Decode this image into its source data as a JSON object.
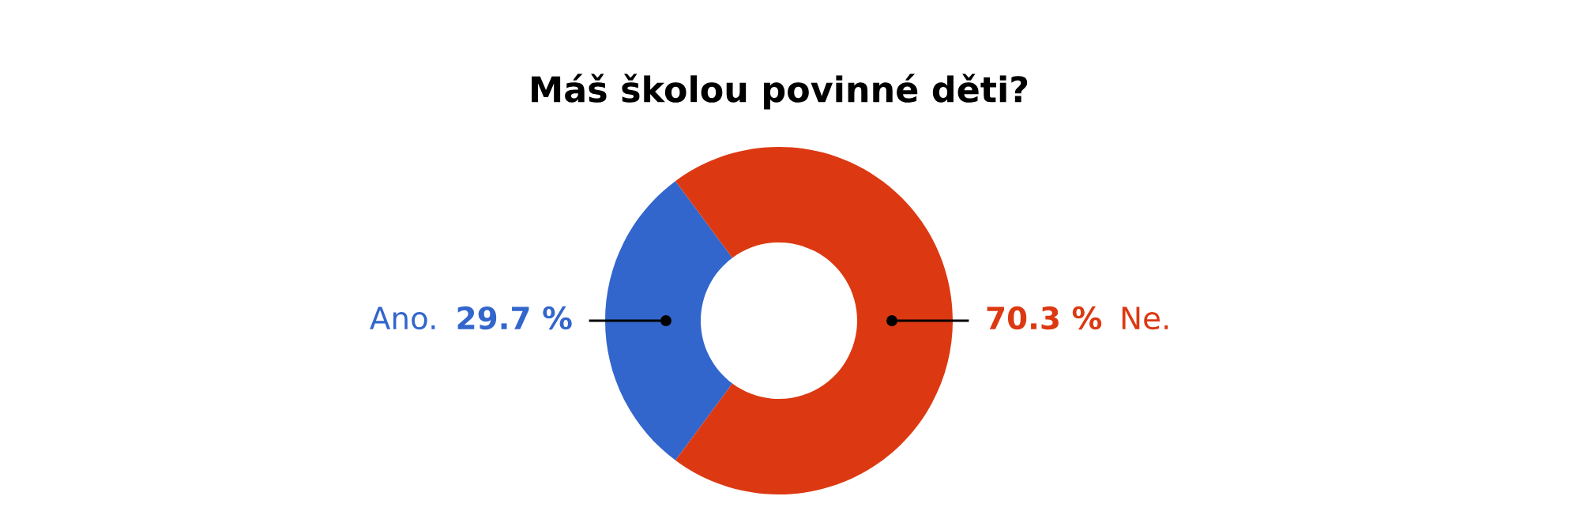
{
  "chart_data": {
    "type": "donut",
    "title": "Máš školou povinné děti?",
    "categories": [
      "Ano.",
      "Ne."
    ],
    "values": [
      29.7,
      70.3
    ],
    "colors": [
      "#3366cc",
      "#dc3912"
    ],
    "value_labels": [
      "29.7 %",
      "70.3 %"
    ]
  }
}
